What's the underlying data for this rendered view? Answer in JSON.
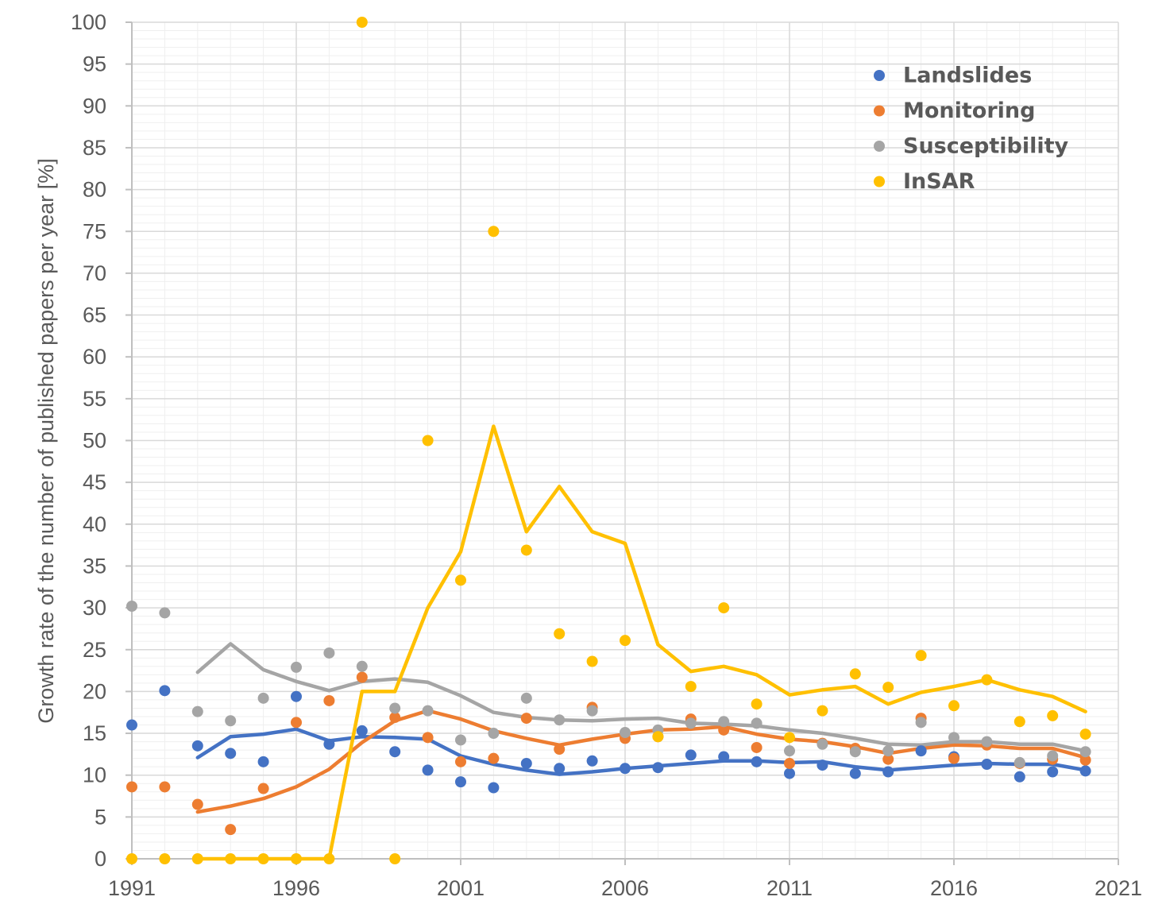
{
  "chart_data": {
    "type": "scatter",
    "title": "",
    "xlabel": "",
    "ylabel": "Growth rate of the number of published papers per year [%]",
    "xlim": [
      1991,
      2021
    ],
    "ylim": [
      0,
      100
    ],
    "x_ticks": [
      1991,
      1996,
      2001,
      2006,
      2011,
      2016,
      2021
    ],
    "y_ticks": [
      0,
      5,
      10,
      15,
      20,
      25,
      30,
      35,
      40,
      45,
      50,
      55,
      60,
      65,
      70,
      75,
      80,
      85,
      90,
      95,
      100
    ],
    "grid": true,
    "legend_position": "top-right",
    "series": [
      {
        "name": "Landslides",
        "color": "#4472C4",
        "points": {
          "x": [
            1991,
            1992,
            1993,
            1994,
            1995,
            1996,
            1997,
            1998,
            1999,
            2000,
            2001,
            2002,
            2003,
            2004,
            2005,
            2006,
            2007,
            2008,
            2009,
            2010,
            2011,
            2012,
            2013,
            2014,
            2015,
            2016,
            2017,
            2018,
            2019,
            2020
          ],
          "y": [
            16.0,
            20.1,
            13.5,
            12.6,
            11.6,
            19.4,
            13.7,
            15.3,
            12.8,
            10.6,
            9.2,
            8.5,
            11.4,
            10.8,
            11.7,
            10.8,
            10.9,
            12.4,
            12.2,
            11.6,
            10.2,
            11.2,
            10.2,
            10.4,
            12.9,
            12.2,
            11.3,
            9.8,
            10.4,
            10.5
          ]
        },
        "trend": {
          "x": [
            1993,
            1994,
            1995,
            1996,
            1997,
            1998,
            1999,
            2000,
            2001,
            2002,
            2003,
            2004,
            2005,
            2006,
            2007,
            2008,
            2009,
            2010,
            2011,
            2012,
            2013,
            2014,
            2015,
            2016,
            2017,
            2018,
            2019,
            2020
          ],
          "y": [
            12.1,
            14.6,
            14.9,
            15.5,
            14.1,
            14.6,
            14.5,
            14.3,
            12.3,
            11.3,
            10.6,
            10.1,
            10.4,
            10.8,
            11.1,
            11.4,
            11.7,
            11.7,
            11.5,
            11.6,
            11.0,
            10.6,
            10.9,
            11.2,
            11.4,
            11.3,
            11.3,
            10.6
          ]
        }
      },
      {
        "name": "Monitoring",
        "color": "#ED7D31",
        "points": {
          "x": [
            1991,
            1992,
            1993,
            1994,
            1995,
            1996,
            1997,
            1998,
            1999,
            2000,
            2001,
            2002,
            2003,
            2004,
            2005,
            2006,
            2007,
            2008,
            2009,
            2010,
            2011,
            2012,
            2013,
            2014,
            2015,
            2016,
            2017,
            2018,
            2019,
            2020
          ],
          "y": [
            8.6,
            8.6,
            6.5,
            3.5,
            8.4,
            16.3,
            18.9,
            21.7,
            16.9,
            14.5,
            11.6,
            12.0,
            16.8,
            13.1,
            18.1,
            14.4,
            14.6,
            16.7,
            15.4,
            13.3,
            11.4,
            13.8,
            13.2,
            11.9,
            16.8,
            12.0,
            13.6,
            11.4,
            11.9,
            11.8
          ]
        },
        "trend": {
          "x": [
            1993,
            1994,
            1995,
            1996,
            1997,
            1998,
            1999,
            2000,
            2001,
            2002,
            2003,
            2004,
            2005,
            2006,
            2007,
            2008,
            2009,
            2010,
            2011,
            2012,
            2013,
            2014,
            2015,
            2016,
            2017,
            2018,
            2019,
            2020
          ],
          "y": [
            5.6,
            6.3,
            7.2,
            8.6,
            10.7,
            13.9,
            16.5,
            17.7,
            16.7,
            15.3,
            14.4,
            13.6,
            14.3,
            14.9,
            15.4,
            15.5,
            15.8,
            14.9,
            14.3,
            14.0,
            13.4,
            12.6,
            13.2,
            13.6,
            13.5,
            13.2,
            13.2,
            12.1
          ]
        }
      },
      {
        "name": "Susceptibility",
        "color": "#A5A5A5",
        "points": {
          "x": [
            1991,
            1992,
            1993,
            1994,
            1995,
            1996,
            1997,
            1998,
            1999,
            2000,
            2001,
            2002,
            2003,
            2004,
            2005,
            2006,
            2007,
            2008,
            2009,
            2010,
            2011,
            2012,
            2013,
            2014,
            2015,
            2016,
            2017,
            2018,
            2019,
            2020
          ],
          "y": [
            30.2,
            29.4,
            17.6,
            16.5,
            19.2,
            22.9,
            24.6,
            23.0,
            18.0,
            17.7,
            14.2,
            15.0,
            19.2,
            16.6,
            17.7,
            15.1,
            15.4,
            16.2,
            16.4,
            16.2,
            12.9,
            13.7,
            12.8,
            12.9,
            16.3,
            14.5,
            14.0,
            11.5,
            12.3,
            12.8
          ]
        },
        "trend": {
          "x": [
            1993,
            1994,
            1995,
            1996,
            1997,
            1998,
            1999,
            2000,
            2001,
            2002,
            2003,
            2004,
            2005,
            2006,
            2007,
            2008,
            2009,
            2010,
            2011,
            2012,
            2013,
            2014,
            2015,
            2016,
            2017,
            2018,
            2019,
            2020
          ],
          "y": [
            22.3,
            25.7,
            22.6,
            21.2,
            20.1,
            21.2,
            21.5,
            21.1,
            19.5,
            17.5,
            16.9,
            16.6,
            16.5,
            16.7,
            16.8,
            16.2,
            16.1,
            15.9,
            15.4,
            15.0,
            14.4,
            13.7,
            13.6,
            14.0,
            14.0,
            13.7,
            13.7,
            12.9
          ]
        }
      },
      {
        "name": "InSAR",
        "color": "#FFC000",
        "points": {
          "x": [
            1991,
            1992,
            1993,
            1994,
            1995,
            1996,
            1997,
            1998,
            1999,
            2000,
            2001,
            2002,
            2003,
            2004,
            2005,
            2006,
            2007,
            2008,
            2009,
            2010,
            2011,
            2012,
            2013,
            2014,
            2015,
            2016,
            2017,
            2018,
            2019,
            2020
          ],
          "y": [
            0,
            0,
            0,
            0,
            0,
            0,
            0,
            100,
            0,
            50,
            33.3,
            75,
            36.9,
            26.9,
            23.6,
            26.1,
            14.6,
            20.6,
            30.0,
            18.5,
            14.5,
            17.7,
            22.1,
            20.5,
            24.3,
            18.3,
            21.4,
            16.4,
            17.1,
            14.9
          ]
        },
        "trend": {
          "x": [
            1993,
            1994,
            1995,
            1996,
            1997,
            1998,
            1999,
            2000,
            2001,
            2002,
            2003,
            2004,
            2005,
            2006,
            2007,
            2008,
            2009,
            2010,
            2011,
            2012,
            2013,
            2014,
            2015,
            2016,
            2017,
            2018,
            2019,
            2020
          ],
          "y": [
            0,
            0,
            0,
            0,
            0,
            20,
            20,
            30,
            36.7,
            51.7,
            39.1,
            44.5,
            39.1,
            37.7,
            25.6,
            22.4,
            23.0,
            22.0,
            19.6,
            20.2,
            20.6,
            18.5,
            19.9,
            20.6,
            21.4,
            20.2,
            19.4,
            17.6
          ]
        }
      }
    ]
  }
}
